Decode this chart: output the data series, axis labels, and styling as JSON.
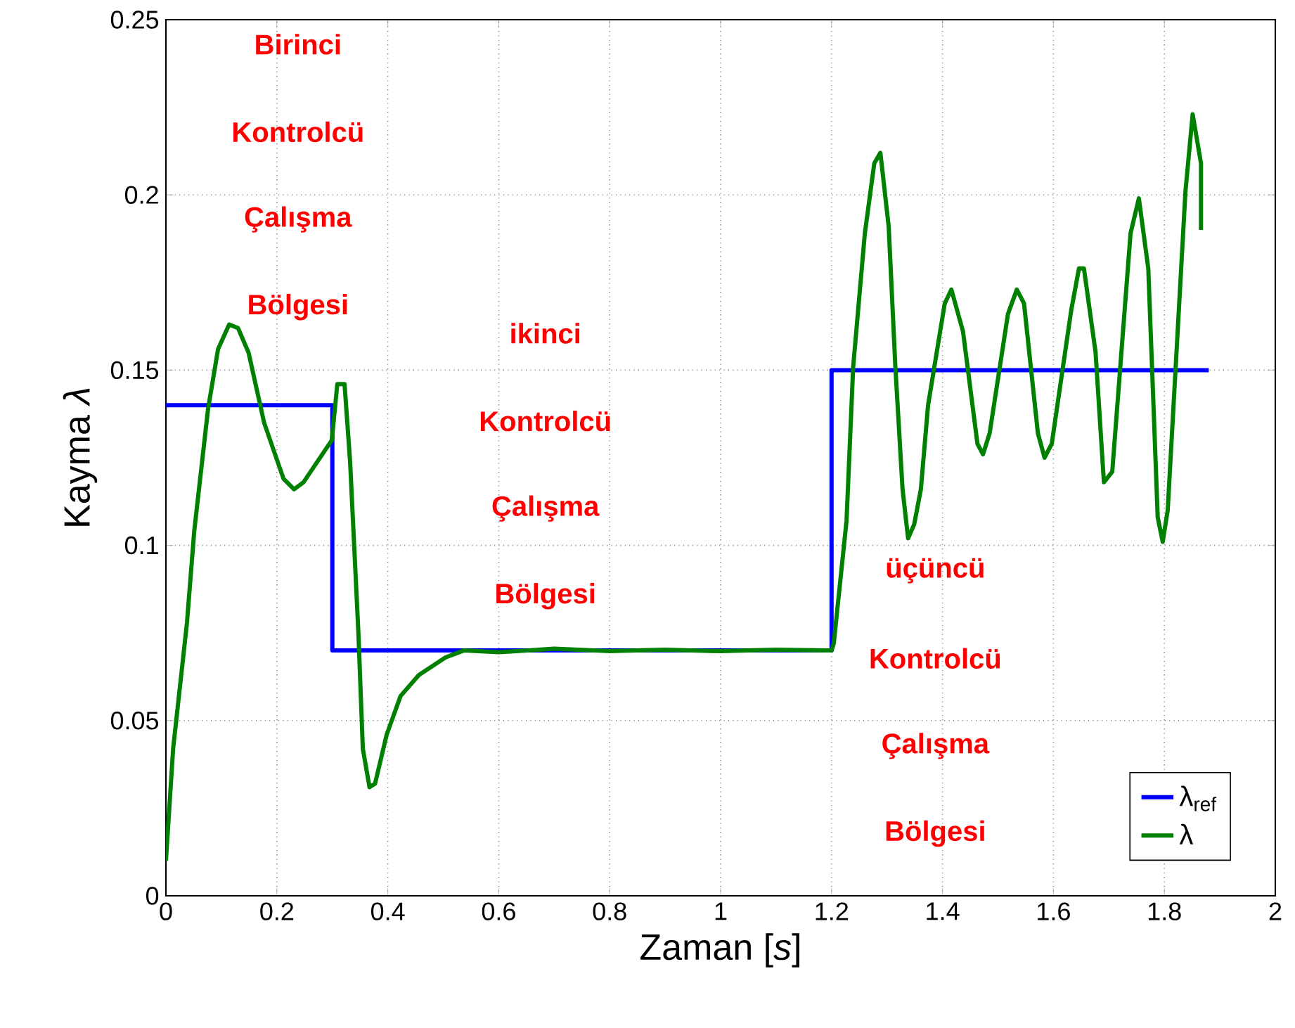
{
  "chart_data": {
    "type": "line",
    "xlabel": "Zaman [*s*]",
    "ylabel": "Kayma *λ*",
    "xlim": [
      0,
      2
    ],
    "ylim": [
      0,
      0.25
    ],
    "xticks": [
      0,
      0.2,
      0.4,
      0.6,
      0.8,
      1,
      1.2,
      1.4,
      1.6,
      1.8,
      2
    ],
    "yticks": [
      0,
      0.05,
      0.1,
      0.15,
      0.2,
      0.25
    ],
    "grid": true,
    "legend": "bottom right",
    "line_style": "solid",
    "marker": "none",
    "series": [
      {
        "name": "λ$_{ref}$",
        "color": "#0000ff",
        "type": "step",
        "x": [
          0,
          0.3,
          1.2,
          1.88
        ],
        "values": [
          0.14,
          0.07,
          0.15,
          0.15
        ]
      },
      {
        "name": "λ",
        "color": "#008000",
        "x": [
          0,
          0.013,
          0.038,
          0.051,
          0.076,
          0.094,
          0.114,
          0.13,
          0.149,
          0.177,
          0.212,
          0.231,
          0.248,
          0.299,
          0.309,
          0.322,
          0.332,
          0.347,
          0.355,
          0.367,
          0.377,
          0.398,
          0.423,
          0.456,
          0.504,
          0.537,
          0.6,
          0.7,
          0.8,
          0.9,
          1.0,
          1.1,
          1.19,
          1.2,
          1.204,
          1.227,
          1.239,
          1.26,
          1.277,
          1.288,
          1.303,
          1.315,
          1.328,
          1.338,
          1.349,
          1.361,
          1.374,
          1.404,
          1.416,
          1.437,
          1.463,
          1.473,
          1.485,
          1.518,
          1.534,
          1.547,
          1.572,
          1.584,
          1.597,
          1.632,
          1.646,
          1.655,
          1.676,
          1.691,
          1.706,
          1.739,
          1.754,
          1.771,
          1.788,
          1.797,
          1.806,
          1.838,
          1.851,
          1.866,
          1.866
        ],
        "values": [
          0.01,
          0.042,
          0.078,
          0.104,
          0.139,
          0.156,
          0.163,
          0.162,
          0.155,
          0.135,
          0.119,
          0.116,
          0.118,
          0.13,
          0.146,
          0.146,
          0.124,
          0.075,
          0.042,
          0.031,
          0.032,
          0.046,
          0.057,
          0.063,
          0.068,
          0.07,
          0.0695,
          0.0705,
          0.0698,
          0.0702,
          0.0698,
          0.0702,
          0.07,
          0.07,
          0.072,
          0.107,
          0.151,
          0.189,
          0.209,
          0.212,
          0.191,
          0.151,
          0.116,
          0.102,
          0.106,
          0.116,
          0.14,
          0.169,
          0.173,
          0.161,
          0.129,
          0.126,
          0.132,
          0.166,
          0.173,
          0.169,
          0.132,
          0.125,
          0.129,
          0.167,
          0.179,
          0.179,
          0.155,
          0.118,
          0.121,
          0.189,
          0.199,
          0.179,
          0.108,
          0.101,
          0.11,
          0.201,
          0.223,
          0.209,
          0.19
        ]
      }
    ],
    "annotations": [
      "Birinci",
      "Kontrolcü",
      "Çalışma",
      "Bölgesi",
      "ikinci",
      "Kontrolcü",
      "Çalışma",
      "Bölgesi",
      "üçüncü",
      "Kontrolcü",
      "Çalışma",
      "Bölgesi"
    ]
  }
}
